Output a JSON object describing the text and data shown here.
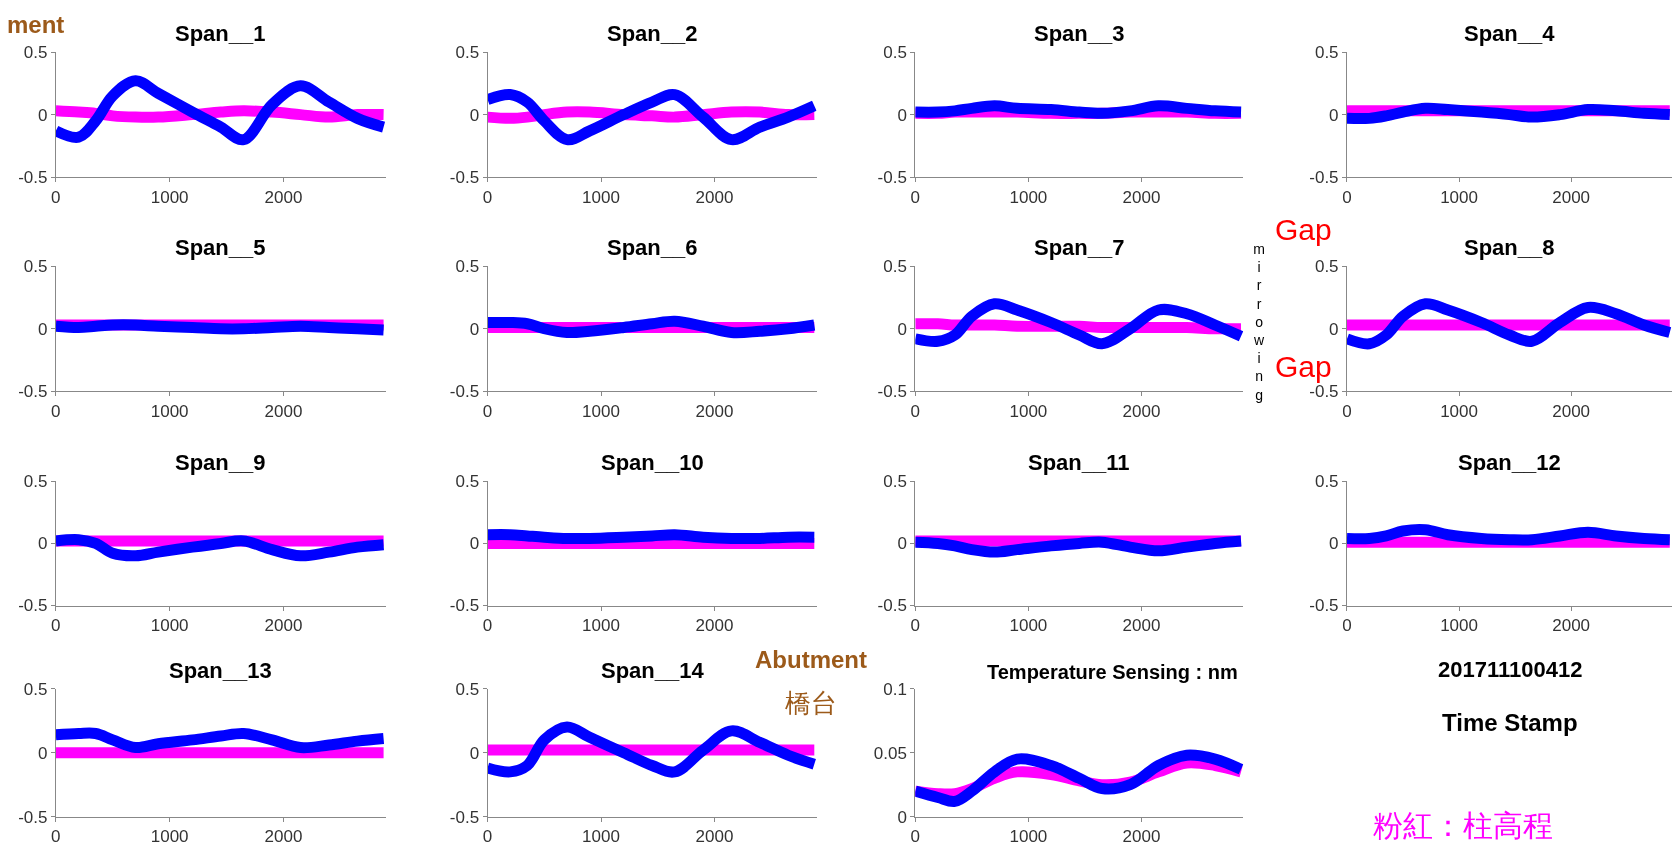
{
  "chart_data": [
    {
      "type": "line",
      "title": "Span__1",
      "x": [
        0,
        200,
        350,
        500,
        700,
        900,
        1200,
        1450,
        1650,
        1900,
        2150,
        2400,
        2650,
        2880
      ],
      "xlim": [
        0,
        2900
      ],
      "xticks": [
        0,
        1000,
        2000
      ],
      "ylim": [
        -0.5,
        0.5
      ],
      "yticks": [
        -0.5,
        0,
        0.5
      ],
      "series": [
        {
          "color": "#ff00ff",
          "values": [
            0.03,
            0.02,
            0.01,
            -0.01,
            -0.02,
            -0.02,
            0,
            0.02,
            0.03,
            0.02,
            0,
            -0.02,
            0,
            0
          ]
        },
        {
          "color": "#0000ff",
          "values": [
            -0.13,
            -0.18,
            -0.05,
            0.15,
            0.27,
            0.17,
            0.02,
            -0.1,
            -0.2,
            0.08,
            0.23,
            0.1,
            -0.03,
            -0.1
          ]
        }
      ]
    },
    {
      "type": "line",
      "title": "Span__2",
      "x": [
        0,
        200,
        350,
        500,
        700,
        900,
        1200,
        1450,
        1650,
        1900,
        2150,
        2400,
        2650,
        2880
      ],
      "xlim": [
        0,
        2900
      ],
      "xticks": [
        0,
        1000,
        2000
      ],
      "ylim": [
        -0.5,
        0.5
      ],
      "yticks": [
        -0.5,
        0,
        0.5
      ],
      "series": [
        {
          "color": "#ff00ff",
          "values": [
            -0.02,
            -0.03,
            -0.02,
            0,
            0.02,
            0.02,
            0,
            -0.01,
            -0.02,
            0,
            0.02,
            0.02,
            0,
            0
          ]
        },
        {
          "color": "#0000ff",
          "values": [
            0.12,
            0.16,
            0.1,
            -0.05,
            -0.2,
            -0.13,
            0,
            0.1,
            0.16,
            -0.02,
            -0.2,
            -0.1,
            -0.02,
            0.07
          ]
        }
      ]
    },
    {
      "type": "line",
      "title": "Span__3",
      "x": [
        0,
        200,
        350,
        500,
        700,
        900,
        1200,
        1450,
        1650,
        1900,
        2150,
        2400,
        2650,
        2880
      ],
      "xlim": [
        0,
        2900
      ],
      "xticks": [
        0,
        1000,
        2000
      ],
      "ylim": [
        -0.5,
        0.5
      ],
      "yticks": [
        -0.5,
        0,
        0.5
      ],
      "series": [
        {
          "color": "#ff00ff",
          "values": [
            0.01,
            0.01,
            0.02,
            0.02,
            0.02,
            0.02,
            0.01,
            0.01,
            0.01,
            0.02,
            0.02,
            0.02,
            0.01,
            0.01
          ]
        },
        {
          "color": "#0000ff",
          "values": [
            0.02,
            0.02,
            0.03,
            0.05,
            0.07,
            0.05,
            0.04,
            0.02,
            0.01,
            0.03,
            0.07,
            0.05,
            0.03,
            0.02
          ]
        }
      ]
    },
    {
      "type": "line",
      "title": "Span__4",
      "x": [
        0,
        200,
        350,
        500,
        700,
        900,
        1200,
        1450,
        1650,
        1900,
        2150,
        2400,
        2650,
        2880
      ],
      "xlim": [
        0,
        2900
      ],
      "xticks": [
        0,
        1000,
        2000
      ],
      "ylim": [
        -0.5,
        0.5
      ],
      "yticks": [
        -0.5,
        0,
        0.5
      ],
      "series": [
        {
          "color": "#ff00ff",
          "values": [
            0.03,
            0.03,
            0.03,
            0.03,
            0.03,
            0.03,
            0.03,
            0.03,
            0.03,
            0.03,
            0.03,
            0.03,
            0.03,
            0.03
          ]
        },
        {
          "color": "#0000ff",
          "values": [
            -0.03,
            -0.03,
            -0.01,
            0.02,
            0.05,
            0.04,
            0.02,
            0,
            -0.02,
            0,
            0.04,
            0.03,
            0.01,
            0
          ]
        }
      ]
    },
    {
      "type": "line",
      "title": "Span__5",
      "x": [
        0,
        200,
        350,
        500,
        700,
        900,
        1200,
        1450,
        1650,
        1900,
        2150,
        2400,
        2650,
        2880
      ],
      "xlim": [
        0,
        2900
      ],
      "xticks": [
        0,
        1000,
        2000
      ],
      "ylim": [
        -0.5,
        0.5
      ],
      "yticks": [
        -0.5,
        0,
        0.5
      ],
      "series": [
        {
          "color": "#ff00ff",
          "values": [
            0.03,
            0.03,
            0.03,
            0.03,
            0.03,
            0.03,
            0.03,
            0.03,
            0.03,
            0.03,
            0.03,
            0.03,
            0.03,
            0.03
          ]
        },
        {
          "color": "#0000ff",
          "values": [
            0.02,
            0.01,
            0.02,
            0.03,
            0.03,
            0.02,
            0.01,
            0,
            0,
            0.01,
            0.02,
            0.01,
            0,
            -0.01
          ]
        }
      ]
    },
    {
      "type": "line",
      "title": "Span__6",
      "x": [
        0,
        200,
        350,
        500,
        700,
        900,
        1200,
        1450,
        1650,
        1900,
        2150,
        2400,
        2650,
        2880
      ],
      "xlim": [
        0,
        2900
      ],
      "xticks": [
        0,
        1000,
        2000
      ],
      "ylim": [
        -0.5,
        0.5
      ],
      "yticks": [
        -0.5,
        0,
        0.5
      ],
      "series": [
        {
          "color": "#ff00ff",
          "values": [
            0.01,
            0.01,
            0.01,
            0.01,
            0.01,
            0.01,
            0.01,
            0.01,
            0.01,
            0.01,
            0.01,
            0.01,
            0.01,
            0.01
          ]
        },
        {
          "color": "#0000ff",
          "values": [
            0.05,
            0.05,
            0.04,
            0,
            -0.03,
            -0.02,
            0.01,
            0.04,
            0.06,
            0.02,
            -0.03,
            -0.02,
            0,
            0.03
          ]
        }
      ]
    },
    {
      "type": "line",
      "title": "Span__7",
      "x": [
        0,
        200,
        350,
        500,
        700,
        900,
        1200,
        1450,
        1650,
        1900,
        2150,
        2400,
        2650,
        2880
      ],
      "xlim": [
        0,
        2900
      ],
      "xticks": [
        0,
        1000,
        2000
      ],
      "ylim": [
        -0.5,
        0.5
      ],
      "yticks": [
        -0.5,
        0,
        0.5
      ],
      "series": [
        {
          "color": "#ff00ff",
          "values": [
            0.04,
            0.04,
            0.03,
            0.03,
            0.03,
            0.02,
            0.02,
            0.02,
            0.01,
            0.01,
            0.01,
            0.01,
            0,
            0
          ]
        },
        {
          "color": "#0000ff",
          "values": [
            -0.08,
            -0.1,
            -0.05,
            0.1,
            0.2,
            0.15,
            0.05,
            -0.05,
            -0.12,
            0,
            0.15,
            0.12,
            0.03,
            -0.06
          ]
        }
      ]
    },
    {
      "type": "line",
      "title": "Span__8",
      "x": [
        0,
        200,
        350,
        500,
        700,
        900,
        1200,
        1450,
        1650,
        1900,
        2150,
        2400,
        2650,
        2880
      ],
      "xlim": [
        0,
        2900
      ],
      "xticks": [
        0,
        1000,
        2000
      ],
      "ylim": [
        -0.5,
        0.5
      ],
      "yticks": [
        -0.5,
        0,
        0.5
      ],
      "series": [
        {
          "color": "#ff00ff",
          "values": [
            0.03,
            0.03,
            0.03,
            0.03,
            0.03,
            0.03,
            0.03,
            0.03,
            0.03,
            0.03,
            0.03,
            0.03,
            0.03,
            0.03
          ]
        },
        {
          "color": "#0000ff",
          "values": [
            -0.08,
            -0.12,
            -0.05,
            0.1,
            0.2,
            0.15,
            0.05,
            -0.05,
            -0.1,
            0.05,
            0.17,
            0.12,
            0.03,
            -0.03
          ]
        }
      ]
    },
    {
      "type": "line",
      "title": "Span__9",
      "x": [
        0,
        200,
        350,
        500,
        700,
        900,
        1200,
        1450,
        1650,
        1900,
        2150,
        2400,
        2650,
        2880
      ],
      "xlim": [
        0,
        2900
      ],
      "xticks": [
        0,
        1000,
        2000
      ],
      "ylim": [
        -0.5,
        0.5
      ],
      "yticks": [
        -0.5,
        0,
        0.5
      ],
      "series": [
        {
          "color": "#ff00ff",
          "values": [
            0.02,
            0.02,
            0.02,
            0.02,
            0.02,
            0.02,
            0.02,
            0.02,
            0.02,
            0.02,
            0.02,
            0.02,
            0.02,
            0.02
          ]
        },
        {
          "color": "#0000ff",
          "values": [
            0.02,
            0.03,
            0,
            -0.08,
            -0.1,
            -0.07,
            -0.03,
            0,
            0.02,
            -0.05,
            -0.1,
            -0.07,
            -0.03,
            -0.01
          ]
        }
      ]
    },
    {
      "type": "line",
      "title": "Span__10",
      "x": [
        0,
        200,
        350,
        500,
        700,
        900,
        1200,
        1450,
        1650,
        1900,
        2150,
        2400,
        2650,
        2880
      ],
      "xlim": [
        0,
        2900
      ],
      "xticks": [
        0,
        1000,
        2000
      ],
      "ylim": [
        -0.5,
        0.5
      ],
      "yticks": [
        -0.5,
        0,
        0.5
      ],
      "series": [
        {
          "color": "#ff00ff",
          "values": [
            0,
            0,
            0,
            0,
            0,
            0,
            0,
            0,
            0,
            0,
            0,
            0,
            0,
            0
          ]
        },
        {
          "color": "#0000ff",
          "values": [
            0.07,
            0.07,
            0.06,
            0.05,
            0.04,
            0.04,
            0.05,
            0.06,
            0.07,
            0.05,
            0.04,
            0.04,
            0.05,
            0.05
          ]
        }
      ]
    },
    {
      "type": "line",
      "title": "Span__11",
      "x": [
        0,
        200,
        350,
        500,
        700,
        900,
        1200,
        1450,
        1650,
        1900,
        2150,
        2400,
        2650,
        2880
      ],
      "xlim": [
        0,
        2900
      ],
      "xticks": [
        0,
        1000,
        2000
      ],
      "ylim": [
        -0.5,
        0.5
      ],
      "yticks": [
        -0.5,
        0,
        0.5
      ],
      "series": [
        {
          "color": "#ff00ff",
          "values": [
            0.02,
            0.02,
            0.02,
            0.02,
            0.02,
            0.02,
            0.02,
            0.02,
            0.02,
            0.02,
            0.02,
            0.02,
            0.02,
            0.02
          ]
        },
        {
          "color": "#0000ff",
          "values": [
            0.01,
            0,
            -0.02,
            -0.05,
            -0.07,
            -0.05,
            -0.02,
            0,
            0.01,
            -0.03,
            -0.06,
            -0.03,
            0,
            0.02
          ]
        }
      ]
    },
    {
      "type": "line",
      "title": "Span__12",
      "x": [
        0,
        200,
        350,
        500,
        700,
        900,
        1200,
        1450,
        1650,
        1900,
        2150,
        2400,
        2650,
        2880
      ],
      "xlim": [
        0,
        2900
      ],
      "xticks": [
        0,
        1000,
        2000
      ],
      "ylim": [
        -0.5,
        0.5
      ],
      "yticks": [
        -0.5,
        0,
        0.5
      ],
      "series": [
        {
          "color": "#ff00ff",
          "values": [
            0.01,
            0.01,
            0.01,
            0.01,
            0.01,
            0.01,
            0.01,
            0.01,
            0.01,
            0.01,
            0.01,
            0.01,
            0.01,
            0.01
          ]
        },
        {
          "color": "#0000ff",
          "values": [
            0.04,
            0.04,
            0.06,
            0.1,
            0.11,
            0.07,
            0.04,
            0.03,
            0.03,
            0.06,
            0.09,
            0.06,
            0.04,
            0.03
          ]
        }
      ]
    },
    {
      "type": "line",
      "title": "Span__13",
      "x": [
        0,
        200,
        350,
        500,
        700,
        900,
        1200,
        1450,
        1650,
        1900,
        2150,
        2400,
        2650,
        2880
      ],
      "xlim": [
        0,
        2900
      ],
      "xticks": [
        0,
        1000,
        2000
      ],
      "ylim": [
        -0.5,
        0.5
      ],
      "yticks": [
        -0.5,
        0,
        0.5
      ],
      "series": [
        {
          "color": "#ff00ff",
          "values": [
            0,
            0,
            0,
            0,
            0,
            0,
            0,
            0,
            0,
            0,
            0,
            0,
            0,
            0
          ]
        },
        {
          "color": "#0000ff",
          "values": [
            0.14,
            0.15,
            0.15,
            0.1,
            0.04,
            0.07,
            0.1,
            0.13,
            0.15,
            0.1,
            0.04,
            0.06,
            0.09,
            0.11
          ]
        }
      ]
    },
    {
      "type": "line",
      "title": "Span__14",
      "x": [
        0,
        200,
        350,
        500,
        700,
        900,
        1200,
        1450,
        1650,
        1900,
        2150,
        2400,
        2650,
        2880
      ],
      "xlim": [
        0,
        2900
      ],
      "xticks": [
        0,
        1000,
        2000
      ],
      "ylim": [
        -0.5,
        0.5
      ],
      "yticks": [
        -0.5,
        0,
        0.5
      ],
      "series": [
        {
          "color": "#ff00ff",
          "values": [
            0.02,
            0.02,
            0.02,
            0.02,
            0.02,
            0.02,
            0.02,
            0.02,
            0.02,
            0.02,
            0.02,
            0.02,
            0.02,
            0.02
          ]
        },
        {
          "color": "#0000ff",
          "values": [
            -0.12,
            -0.15,
            -0.1,
            0.1,
            0.2,
            0.12,
            0,
            -0.1,
            -0.15,
            0.02,
            0.17,
            0.08,
            -0.02,
            -0.09
          ]
        }
      ]
    },
    {
      "type": "line",
      "title": "Temperature Sensing : nm",
      "x": [
        0,
        200,
        350,
        500,
        700,
        900,
        1200,
        1450,
        1650,
        1900,
        2150,
        2400,
        2650,
        2880
      ],
      "xlim": [
        0,
        2900
      ],
      "xticks": [
        0,
        1000,
        2000
      ],
      "ylim": [
        0,
        0.1
      ],
      "yticks": [
        0,
        0.05,
        0.1
      ],
      "series": [
        {
          "color": "#ff00ff",
          "values": [
            0.02,
            0.018,
            0.018,
            0.022,
            0.03,
            0.035,
            0.033,
            0.028,
            0.025,
            0.027,
            0.035,
            0.042,
            0.04,
            0.035
          ]
        },
        {
          "color": "#0000ff",
          "values": [
            0.02,
            0.015,
            0.012,
            0.02,
            0.035,
            0.045,
            0.04,
            0.03,
            0.022,
            0.025,
            0.04,
            0.048,
            0.045,
            0.037
          ]
        }
      ]
    },
    {
      "type": "other",
      "annotations": [
        "ment",
        "Gap",
        "mirrowing",
        "Gap",
        "Abutment",
        "橋台",
        "201711100412",
        "Time Stamp",
        "粉紅：柱高程"
      ]
    }
  ]
}
